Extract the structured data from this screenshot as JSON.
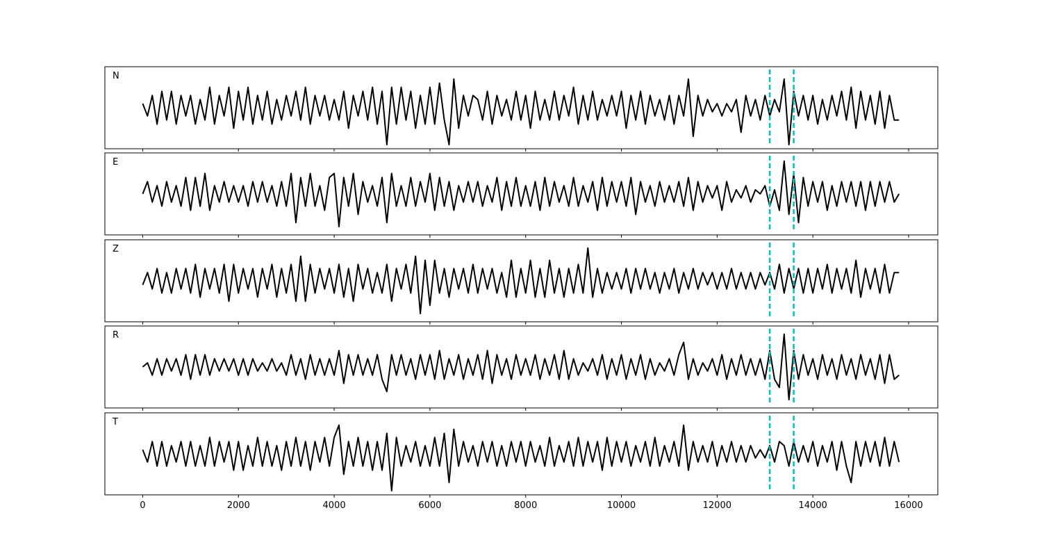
{
  "chart_data": {
    "type": "line",
    "x": [
      0,
      100,
      200,
      300,
      400,
      500,
      600,
      700,
      800,
      900,
      1000,
      1100,
      1200,
      1300,
      1400,
      1500,
      1600,
      1700,
      1800,
      1900,
      2000,
      2100,
      2200,
      2300,
      2400,
      2500,
      2600,
      2700,
      2800,
      2900,
      3000,
      3100,
      3200,
      3300,
      3400,
      3500,
      3600,
      3700,
      3800,
      3900,
      4000,
      4100,
      4200,
      4300,
      4400,
      4500,
      4600,
      4700,
      4800,
      4900,
      5000,
      5100,
      5200,
      5300,
      5400,
      5500,
      5600,
      5700,
      5800,
      5900,
      6000,
      6100,
      6200,
      6300,
      6400,
      6500,
      6600,
      6700,
      6800,
      6900,
      7000,
      7100,
      7200,
      7300,
      7400,
      7500,
      7600,
      7700,
      7800,
      7900,
      8000,
      8100,
      8200,
      8300,
      8400,
      8500,
      8600,
      8700,
      8800,
      8900,
      9000,
      9100,
      9200,
      9300,
      9400,
      9500,
      9600,
      9700,
      9800,
      9900,
      10000,
      10100,
      10200,
      10300,
      10400,
      10500,
      10600,
      10700,
      10800,
      10900,
      11000,
      11100,
      11200,
      11300,
      11400,
      11500,
      11600,
      11700,
      11800,
      11900,
      12000,
      12100,
      12200,
      12300,
      12400,
      12500,
      12600,
      12700,
      12800,
      12900,
      13000,
      13100,
      13200,
      13300,
      13400,
      13500,
      13600,
      13700,
      13800,
      13900,
      14000,
      14100,
      14200,
      14300,
      14400,
      14500,
      14600,
      14700,
      14800,
      14900,
      15000,
      15100,
      15200,
      15300,
      15400,
      15500,
      15600,
      15700,
      15800
    ],
    "series": [
      {
        "name": "N",
        "color": "#000000",
        "values": [
          1,
          -2,
          3,
          -4,
          4,
          -3,
          4,
          -4,
          3,
          -2,
          3,
          -4,
          2,
          -3,
          5,
          -4,
          3,
          -2,
          5,
          -5,
          4,
          -3,
          5,
          -4,
          3,
          -3,
          4,
          -4,
          2,
          -3,
          3,
          -2,
          4,
          -3,
          5,
          -4,
          3,
          -2,
          3,
          -3,
          2,
          -3,
          4,
          -5,
          3,
          -2,
          4,
          -3,
          5,
          -4,
          4,
          -9,
          5,
          -4,
          5,
          -3,
          4,
          -5,
          3,
          -4,
          5,
          -4,
          6,
          -3,
          -9,
          7,
          -5,
          3,
          -2,
          3,
          2,
          -3,
          4,
          -4,
          3,
          -2,
          2,
          -3,
          4,
          -3,
          3,
          -5,
          4,
          -3,
          2,
          -3,
          4,
          -3,
          3,
          -2,
          5,
          -4,
          3,
          -3,
          4,
          -3,
          2,
          -2,
          3,
          -2,
          4,
          -5,
          3,
          -3,
          4,
          -4,
          3,
          -2,
          2,
          -3,
          3,
          -4,
          3,
          -2,
          7,
          -7,
          3,
          -2,
          2,
          -1,
          1,
          -2,
          1,
          -1,
          2,
          -6,
          3,
          -2,
          2,
          -3,
          3,
          -2,
          2,
          -1,
          7,
          -9,
          4,
          -2,
          3,
          -3,
          3,
          -4,
          2,
          -3,
          3,
          -2,
          4,
          -3,
          5,
          -5,
          4,
          -3,
          3,
          -4,
          4,
          -5,
          3,
          -3,
          -3
        ]
      },
      {
        "name": "E",
        "color": "#000000",
        "values": [
          0,
          3,
          -2,
          2,
          -3,
          3,
          -2,
          2,
          -3,
          4,
          -4,
          4,
          -3,
          5,
          -4,
          2,
          -2,
          3,
          -2,
          2,
          -2,
          2,
          -3,
          3,
          -2,
          3,
          -2,
          2,
          -3,
          3,
          -3,
          5,
          -7,
          4,
          -3,
          5,
          -3,
          2,
          -4,
          4,
          5,
          -8,
          4,
          -3,
          5,
          -5,
          3,
          -2,
          2,
          -3,
          4,
          -7,
          5,
          -3,
          2,
          -3,
          4,
          -3,
          3,
          -2,
          5,
          -4,
          4,
          -3,
          3,
          -4,
          2,
          -2,
          3,
          -2,
          3,
          -3,
          2,
          -2,
          4,
          -4,
          3,
          -3,
          4,
          -3,
          2,
          -3,
          3,
          -4,
          4,
          -3,
          3,
          -2,
          2,
          -3,
          4,
          -3,
          2,
          -2,
          3,
          -4,
          4,
          -3,
          3,
          -2,
          3,
          -3,
          4,
          -5,
          3,
          -2,
          2,
          -3,
          3,
          -2,
          2,
          -2,
          3,
          -3,
          4,
          -4,
          3,
          -2,
          2,
          -1,
          2,
          -4,
          3,
          -2,
          1,
          -1,
          2,
          -2,
          1,
          0,
          2,
          -3,
          1,
          -4,
          8,
          -5,
          5,
          -7,
          4,
          -3,
          3,
          -2,
          3,
          -4,
          2,
          -3,
          3,
          -2,
          3,
          -3,
          3,
          -4,
          3,
          -3,
          3,
          -2,
          3,
          -2,
          0
        ]
      },
      {
        "name": "Z",
        "color": "#000000",
        "values": [
          -1,
          2,
          -2,
          3,
          -3,
          2,
          -3,
          3,
          -2,
          3,
          -3,
          4,
          -4,
          3,
          -2,
          3,
          -3,
          4,
          -5,
          4,
          -3,
          3,
          -2,
          3,
          -4,
          3,
          -2,
          4,
          -4,
          3,
          -3,
          4,
          -5,
          6,
          -5,
          4,
          -3,
          3,
          -2,
          3,
          -3,
          4,
          -4,
          3,
          -5,
          4,
          -2,
          3,
          -3,
          2,
          -3,
          4,
          -5,
          3,
          -2,
          4,
          -3,
          6,
          -8,
          5,
          -6,
          5,
          -3,
          3,
          -4,
          3,
          -2,
          3,
          -3,
          4,
          -3,
          3,
          -2,
          3,
          -3,
          2,
          -4,
          5,
          -4,
          3,
          -3,
          5,
          -4,
          3,
          -4,
          5,
          -3,
          3,
          -4,
          3,
          -3,
          4,
          -3,
          8,
          -4,
          3,
          -3,
          2,
          -2,
          2,
          -2,
          3,
          -3,
          3,
          -2,
          3,
          -2,
          2,
          -3,
          2,
          -2,
          3,
          -3,
          2,
          -2,
          3,
          -2,
          2,
          -1,
          2,
          -2,
          2,
          -2,
          3,
          -2,
          2,
          -2,
          2,
          -2,
          2,
          -1,
          2,
          -2,
          4,
          -3,
          3,
          -2,
          3,
          -3,
          3,
          -3,
          3,
          -2,
          4,
          -3,
          3,
          -2,
          3,
          -3,
          5,
          -4,
          3,
          -2,
          3,
          -3,
          4,
          -3,
          2,
          2
        ]
      },
      {
        "name": "R",
        "color": "#000000",
        "values": [
          0,
          1,
          -2,
          2,
          -2,
          2,
          -1,
          2,
          -2,
          3,
          -3,
          3,
          -2,
          3,
          -2,
          2,
          -1,
          2,
          -1,
          2,
          -2,
          2,
          -2,
          2,
          -1,
          1,
          -1,
          2,
          -1,
          1,
          -2,
          3,
          -2,
          2,
          -3,
          3,
          -2,
          2,
          -2,
          2,
          -2,
          4,
          -4,
          3,
          -2,
          3,
          -2,
          2,
          -2,
          3,
          -3,
          -6,
          3,
          -2,
          3,
          -2,
          2,
          -3,
          3,
          -2,
          3,
          -3,
          4,
          -3,
          2,
          -2,
          3,
          -3,
          2,
          -2,
          3,
          -3,
          4,
          -4,
          3,
          -2,
          2,
          -3,
          3,
          -2,
          2,
          -2,
          3,
          -3,
          2,
          -2,
          3,
          -3,
          4,
          -3,
          2,
          -2,
          1,
          -1,
          2,
          -2,
          3,
          -3,
          2,
          -2,
          3,
          -3,
          2,
          -2,
          3,
          -3,
          2,
          -2,
          1,
          -1,
          2,
          -2,
          3,
          6,
          -3,
          2,
          -2,
          1,
          -1,
          2,
          -2,
          3,
          -3,
          2,
          -2,
          3,
          -2,
          2,
          -2,
          2,
          -3,
          4,
          -3,
          -5,
          8,
          -8,
          4,
          -3,
          3,
          -2,
          2,
          -3,
          3,
          -2,
          2,
          -3,
          3,
          -2,
          2,
          -3,
          3,
          -2,
          2,
          -3,
          3,
          -4,
          3,
          -3,
          -2
        ]
      },
      {
        "name": "T",
        "color": "#000000",
        "values": [
          1,
          -2,
          3,
          -3,
          3,
          -3,
          2,
          -2,
          3,
          -3,
          3,
          -3,
          2,
          -3,
          4,
          -3,
          3,
          -2,
          3,
          -4,
          3,
          -4,
          2,
          -3,
          4,
          -3,
          3,
          -3,
          2,
          -4,
          3,
          -3,
          4,
          -3,
          3,
          -4,
          3,
          -2,
          4,
          -3,
          4,
          7,
          -5,
          3,
          -3,
          4,
          -3,
          3,
          -4,
          3,
          -4,
          5,
          -9,
          4,
          -3,
          2,
          -2,
          3,
          -3,
          2,
          -3,
          4,
          -3,
          5,
          -7,
          6,
          -3,
          3,
          -2,
          2,
          -3,
          3,
          -2,
          3,
          -3,
          2,
          -3,
          3,
          -2,
          3,
          -3,
          3,
          -2,
          2,
          -3,
          4,
          -3,
          2,
          -2,
          3,
          -3,
          4,
          -3,
          3,
          -2,
          3,
          -4,
          4,
          -3,
          3,
          -2,
          3,
          -3,
          2,
          -2,
          3,
          -3,
          4,
          -3,
          2,
          -2,
          3,
          -3,
          7,
          -4,
          3,
          -2,
          2,
          -2,
          3,
          -3,
          2,
          -2,
          3,
          -2,
          2,
          -2,
          2,
          -1,
          1,
          -1,
          2,
          -2,
          3,
          2,
          -3,
          3,
          -2,
          2,
          -2,
          3,
          -3,
          2,
          -2,
          3,
          -4,
          3,
          -3,
          -7,
          3,
          -3,
          3,
          -2,
          3,
          -3,
          4,
          -3,
          3,
          -2
        ]
      }
    ],
    "xlim": [
      -790,
      16610
    ],
    "xticks": [
      0,
      2000,
      4000,
      6000,
      8000,
      10000,
      12000,
      14000,
      16000
    ],
    "ylim": [
      -10,
      10
    ],
    "vlines": {
      "x": [
        13100,
        13600
      ],
      "color": "#00bfbf"
    }
  }
}
